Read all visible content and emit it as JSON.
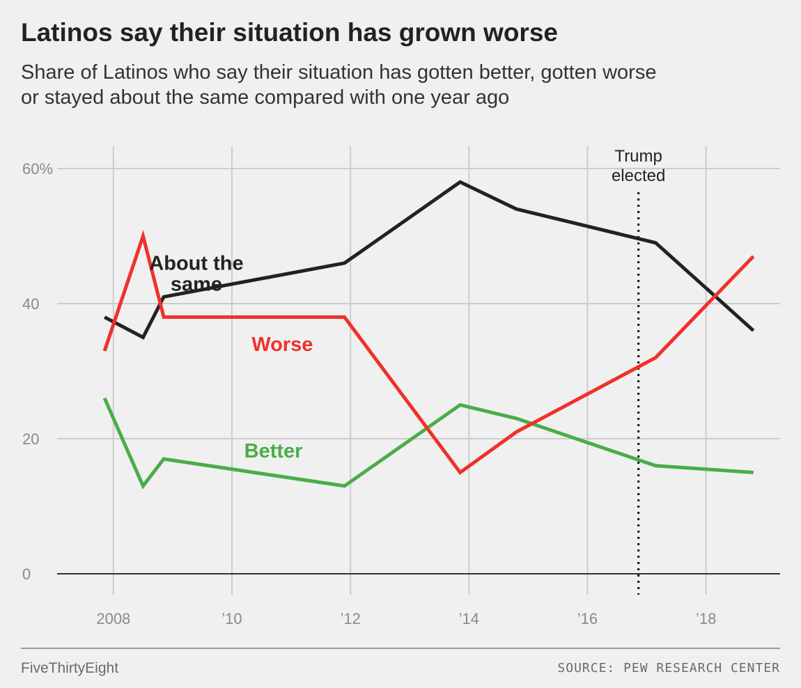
{
  "header": {
    "title": "Latinos say their situation has grown worse",
    "subtitle_line1": "Share of Latinos who say their situation has gotten better, gotten worse",
    "subtitle_line2": "or stayed about the same compared with one year ago"
  },
  "footer": {
    "brand": "FiveThirtyEight",
    "source": "SOURCE: PEW RESEARCH CENTER"
  },
  "colors": {
    "about_the_same": "#222222",
    "worse": "#f0302a",
    "better": "#4aad48",
    "grid": "#cccccc",
    "axis": "#333333",
    "tick_text": "#8a8a8a"
  },
  "chart_data": {
    "type": "line",
    "title": "Latinos say their situation has grown worse",
    "xlabel": "",
    "ylabel": "",
    "xlim": [
      2007.05,
      2019.25
    ],
    "ylim": [
      0,
      60
    ],
    "grid": true,
    "x_ticks": [
      {
        "value": 2008,
        "label": "2008"
      },
      {
        "value": 2010,
        "label": "’10"
      },
      {
        "value": 2012,
        "label": "’12"
      },
      {
        "value": 2014,
        "label": "’14"
      },
      {
        "value": 2016,
        "label": "’16"
      },
      {
        "value": 2018,
        "label": "’18"
      }
    ],
    "y_ticks": [
      {
        "value": 0,
        "label": "0"
      },
      {
        "value": 20,
        "label": "20"
      },
      {
        "value": 40,
        "label": "40"
      },
      {
        "value": 60,
        "label": "60%"
      }
    ],
    "series": [
      {
        "name": "About the same",
        "label_lines": [
          "About the",
          "same"
        ],
        "color_key": "about_the_same",
        "label_at": [
          2009.4,
          45
        ],
        "points": [
          [
            2007.85,
            38
          ],
          [
            2008.5,
            35
          ],
          [
            2008.85,
            41
          ],
          [
            2011.9,
            46
          ],
          [
            2013.85,
            58
          ],
          [
            2014.8,
            54
          ],
          [
            2017.15,
            49
          ],
          [
            2018.8,
            36
          ]
        ]
      },
      {
        "name": "Worse",
        "label_lines": [
          "Worse"
        ],
        "color_key": "worse",
        "label_at": [
          2010.85,
          33
        ],
        "points": [
          [
            2007.85,
            33
          ],
          [
            2008.5,
            50
          ],
          [
            2008.85,
            38
          ],
          [
            2011.9,
            38
          ],
          [
            2013.85,
            15
          ],
          [
            2014.8,
            21
          ],
          [
            2017.15,
            32
          ],
          [
            2018.8,
            47
          ]
        ]
      },
      {
        "name": "Better",
        "label_lines": [
          "Better"
        ],
        "color_key": "better",
        "label_at": [
          2010.7,
          17.2
        ],
        "points": [
          [
            2007.85,
            26
          ],
          [
            2008.5,
            13
          ],
          [
            2008.85,
            17
          ],
          [
            2011.9,
            13
          ],
          [
            2013.85,
            25
          ],
          [
            2014.8,
            23
          ],
          [
            2017.15,
            16
          ],
          [
            2018.8,
            15
          ]
        ]
      }
    ],
    "annotations": [
      {
        "type": "vline",
        "x": 2016.86,
        "style": "dotted",
        "label_lines": [
          "Trump",
          "elected"
        ]
      }
    ]
  }
}
